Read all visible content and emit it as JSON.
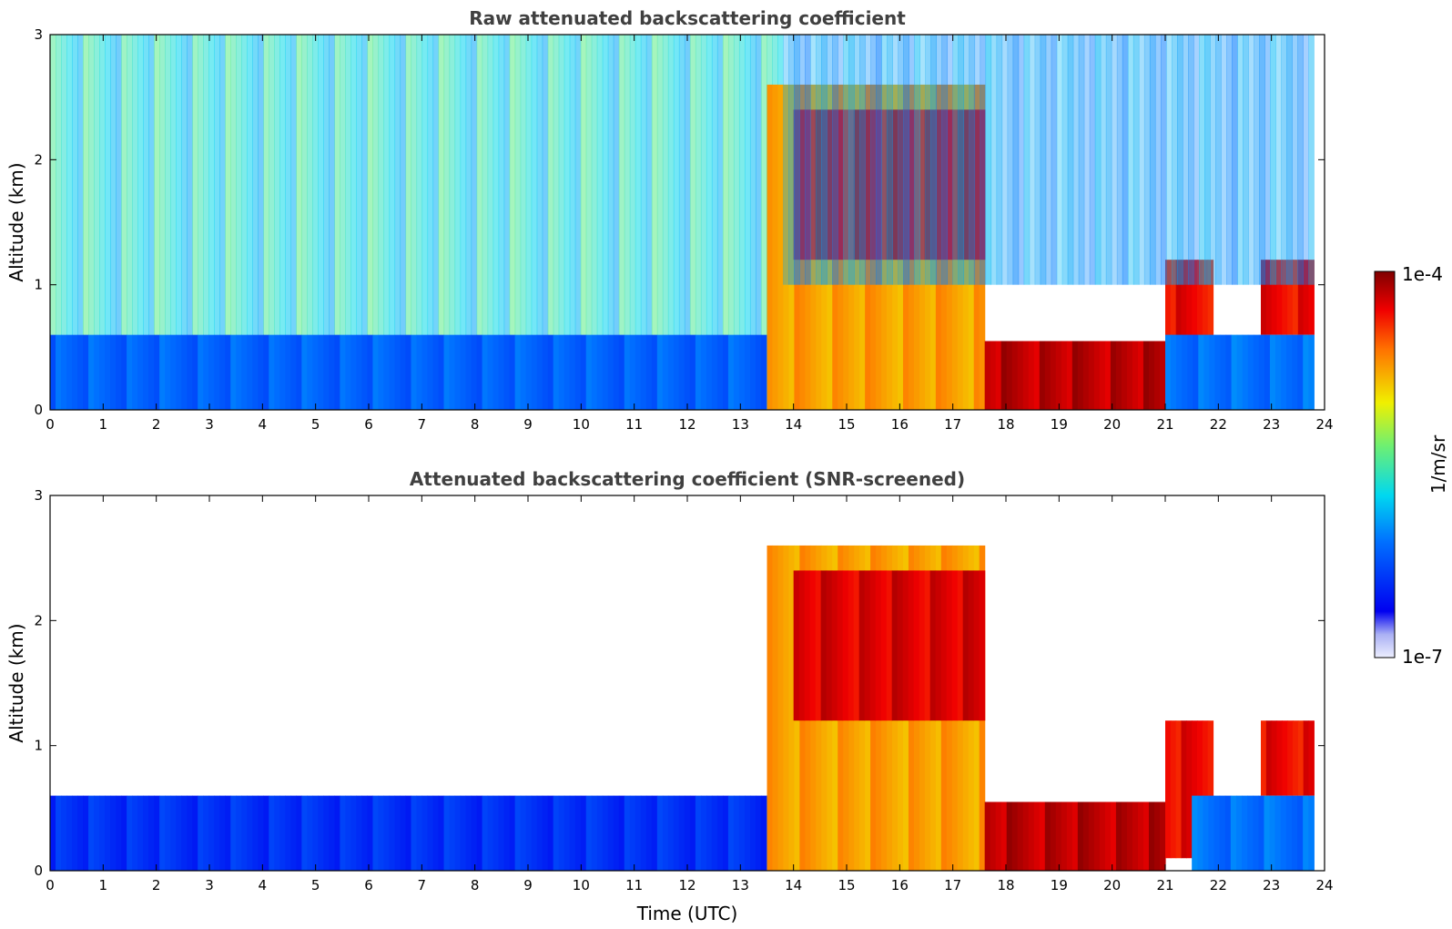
{
  "chart_data": [
    {
      "type": "heatmap",
      "title": "Raw attenuated backscattering coefficient",
      "xlabel": "",
      "ylabel": "Altitude (km)",
      "xlim": [
        0,
        24
      ],
      "ylim": [
        0,
        3
      ],
      "x_ticks": [
        "0",
        "1",
        "2",
        "3",
        "4",
        "5",
        "6",
        "7",
        "8",
        "9",
        "10",
        "11",
        "12",
        "13",
        "14",
        "15",
        "16",
        "17",
        "18",
        "19",
        "20",
        "21",
        "22",
        "23",
        "24"
      ],
      "y_ticks": [
        "0",
        "1",
        "2",
        "3"
      ],
      "grid": false,
      "scale": "log",
      "value_range": [
        1e-07,
        0.0001
      ],
      "features": [
        {
          "time": [
            0,
            13.8
          ],
          "alt": [
            0,
            0.6
          ],
          "level": 0.28
        },
        {
          "time": [
            0,
            13.8
          ],
          "alt": [
            0.6,
            3
          ],
          "level": 0.45,
          "noisy": true
        },
        {
          "time": [
            13.5,
            17.6
          ],
          "alt": [
            0,
            2.6
          ],
          "level": 0.75
        },
        {
          "time": [
            14.0,
            17.6
          ],
          "alt": [
            1.2,
            2.4
          ],
          "level": 0.92
        },
        {
          "time": [
            17.6,
            21.0
          ],
          "alt": [
            0,
            0.55
          ],
          "level": 0.95
        },
        {
          "time": [
            21.0,
            21.9
          ],
          "alt": [
            0.1,
            1.2
          ],
          "level": 0.9
        },
        {
          "time": [
            22.0,
            22.8
          ],
          "alt": [
            0.1,
            0.4
          ],
          "level": 0.9
        },
        {
          "time": [
            22.8,
            23.8
          ],
          "alt": [
            0.6,
            1.2
          ],
          "level": 0.9
        },
        {
          "time": [
            21.0,
            23.8
          ],
          "alt": [
            0,
            0.6
          ],
          "level": 0.3
        },
        {
          "time": [
            13.8,
            23.8
          ],
          "alt": [
            1.0,
            3
          ],
          "level": 0.35,
          "sparse": true
        }
      ]
    },
    {
      "type": "heatmap",
      "title": "Attenuated backscattering coefficient (SNR-screened)",
      "xlabel": "Time (UTC)",
      "ylabel": "Altitude (km)",
      "xlim": [
        0,
        24
      ],
      "ylim": [
        0,
        3
      ],
      "x_ticks": [
        "0",
        "1",
        "2",
        "3",
        "4",
        "5",
        "6",
        "7",
        "8",
        "9",
        "10",
        "11",
        "12",
        "13",
        "14",
        "15",
        "16",
        "17",
        "18",
        "19",
        "20",
        "21",
        "22",
        "23",
        "24"
      ],
      "y_ticks": [
        "0",
        "1",
        "2",
        "3"
      ],
      "grid": false,
      "scale": "log",
      "value_range": [
        1e-07,
        0.0001
      ],
      "features": [
        {
          "time": [
            0,
            13.8
          ],
          "alt": [
            0,
            0.6
          ],
          "level": 0.2
        },
        {
          "time": [
            13.5,
            17.6
          ],
          "alt": [
            0,
            2.6
          ],
          "level": 0.75
        },
        {
          "time": [
            14.0,
            17.6
          ],
          "alt": [
            1.2,
            2.4
          ],
          "level": 0.92
        },
        {
          "time": [
            17.6,
            21.0
          ],
          "alt": [
            0,
            0.55
          ],
          "level": 0.95
        },
        {
          "time": [
            21.0,
            21.9
          ],
          "alt": [
            0.1,
            1.2
          ],
          "level": 0.9
        },
        {
          "time": [
            22.0,
            22.8
          ],
          "alt": [
            0.1,
            0.4
          ],
          "level": 0.9
        },
        {
          "time": [
            22.8,
            23.8
          ],
          "alt": [
            0.6,
            1.2
          ],
          "level": 0.9
        },
        {
          "time": [
            21.5,
            23.8
          ],
          "alt": [
            0,
            0.6
          ],
          "level": 0.3
        }
      ]
    }
  ],
  "colorbar": {
    "label": "1/m/sr",
    "max_label": "1e-4",
    "min_label": "1e-7",
    "colormap": "jet"
  },
  "colors": {
    "axis": "#000000",
    "title": "#404040",
    "background": "#ffffff"
  }
}
